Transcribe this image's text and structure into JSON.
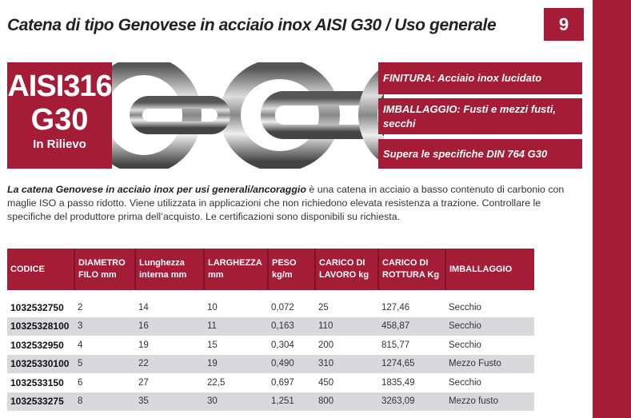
{
  "title": "Catena di tipo Genovese in acciaio inox AISI G30 / Uso generale",
  "page_number": "9",
  "badge": {
    "line1": "AISI316",
    "line2": "G30",
    "line3": "In Rilievo"
  },
  "features": [
    "FINITURA: Acciaio inox lucidato",
    "IMBALLAGGIO: Fusti e mezzi fusti, secchi",
    "Supera le specifiche DIN 764 G30"
  ],
  "description": {
    "lead": "La catena Genovese in acciaio inox per usi generali/ancoraggio",
    "body": " è una catena in acciaio a basso contenuto di carbonio con maglie ISO a passo ridotto. Viene utilizzata in applicazioni che non richiedono elevata resistenza a trazione. Controllare le specifiche del produttore prima dell’acquisto. Le certificazioni sono disponibili su richiesta."
  },
  "table": {
    "headers": [
      "CODICE",
      "DIAMETRO FILO mm",
      "Lunghezza interna  mm",
      "LARGHEZZA mm",
      "PESO kg/m",
      "CARICO DI LAVORO kg",
      "CARICO DI ROTTURA Kg",
      "IMBALLAGGIO"
    ],
    "rows": [
      [
        "1032532750",
        "2",
        "14",
        "10",
        "0,072",
        "25",
        "127,46",
        "Secchio"
      ],
      [
        "10325328100",
        "3",
        "16",
        "11",
        "0,163",
        "110",
        "458,87",
        "Secchio"
      ],
      [
        "1032532950",
        "4",
        "19",
        "15",
        "0,304",
        "200",
        "815,77",
        "Secchio"
      ],
      [
        "10325330100",
        "5",
        "22",
        "19",
        "0,490",
        "310",
        "1274,65",
        "Mezzo Fusto"
      ],
      [
        "1032533150",
        "6",
        "27",
        "22,5",
        "0,697",
        "450",
        "1835,49",
        "Secchio"
      ],
      [
        "1032533275",
        "8",
        "35",
        "30",
        "1,251",
        "800",
        "3263,09",
        "Mezzo fusto"
      ]
    ]
  },
  "colors": {
    "brand": "#a51c36",
    "row_shade": "#d9d9db"
  }
}
